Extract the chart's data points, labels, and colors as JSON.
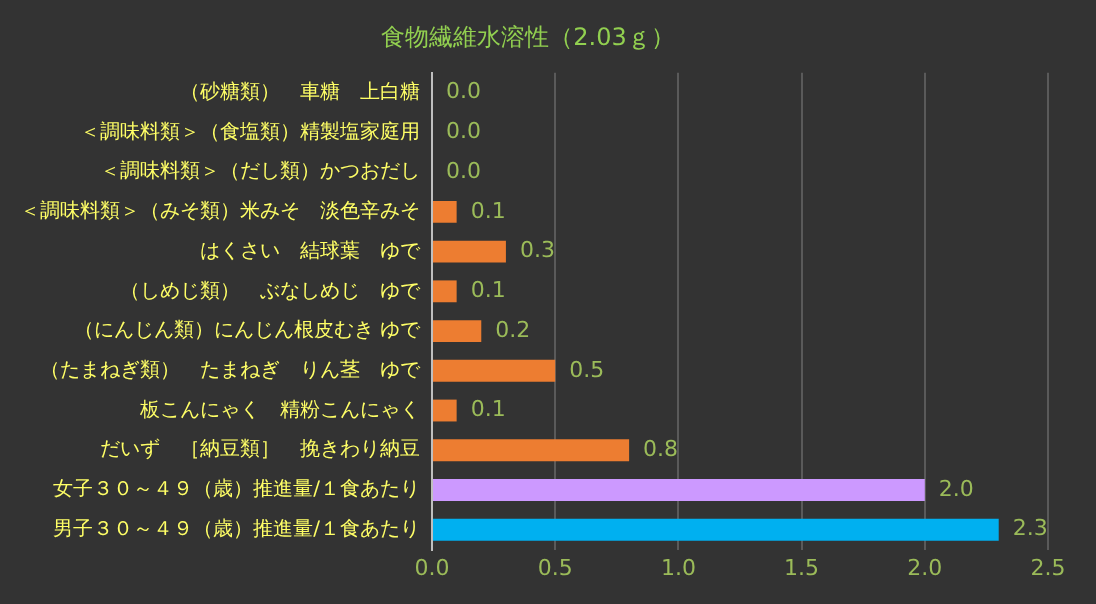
{
  "chart_data": {
    "type": "bar",
    "orientation": "horizontal",
    "title": "食物繊維水溶性（2.03ｇ）",
    "categories": [
      "（砂糖類）　車糖　上白糖",
      "＜調味料類＞（食塩類）精製塩家庭用",
      "＜調味料類＞（だし類）かつおだし",
      "＜調味料類＞（みそ類）米みそ　淡色辛みそ",
      "はくさい　結球葉　ゆで",
      "（しめじ類）　ぶなしめじ　ゆで",
      "（にんじん類）にんじん根皮むき ゆで",
      "（たまねぎ類）　たまねぎ　りん茎　ゆで",
      "板こんにゃく　精粉こんにゃく",
      "だいず　［納豆類］　挽きわり納豆",
      "女子３０～４９（歳）推進量/１食あたり",
      "男子３０～４９（歳）推進量/１食あたり"
    ],
    "values": [
      0,
      0,
      0,
      0.1,
      0.3,
      0.1,
      0.2,
      0.5,
      0.1,
      0.8,
      2.0,
      2.3
    ],
    "value_labels": [
      "0.0",
      "0.0",
      "0.0",
      "0.1",
      "0.3",
      "0.1",
      "0.2",
      "0.5",
      "0.1",
      "0.8",
      "2.0",
      "2.3"
    ],
    "colors": [
      "#ed7d31",
      "#ed7d31",
      "#ed7d31",
      "#ed7d31",
      "#ed7d31",
      "#ed7d31",
      "#ed7d31",
      "#ed7d31",
      "#ed7d31",
      "#ed7d31",
      "#cc99ff",
      "#00b0f0"
    ],
    "xlim": [
      0,
      2.5
    ],
    "xticks": [
      {
        "value": 0,
        "label": "0.0"
      },
      0.5,
      {
        "value": 1,
        "label": "1.0"
      },
      1.5,
      {
        "value": 2,
        "label": "2.0"
      },
      2.5
    ],
    "grid": "x",
    "legend": false
  }
}
